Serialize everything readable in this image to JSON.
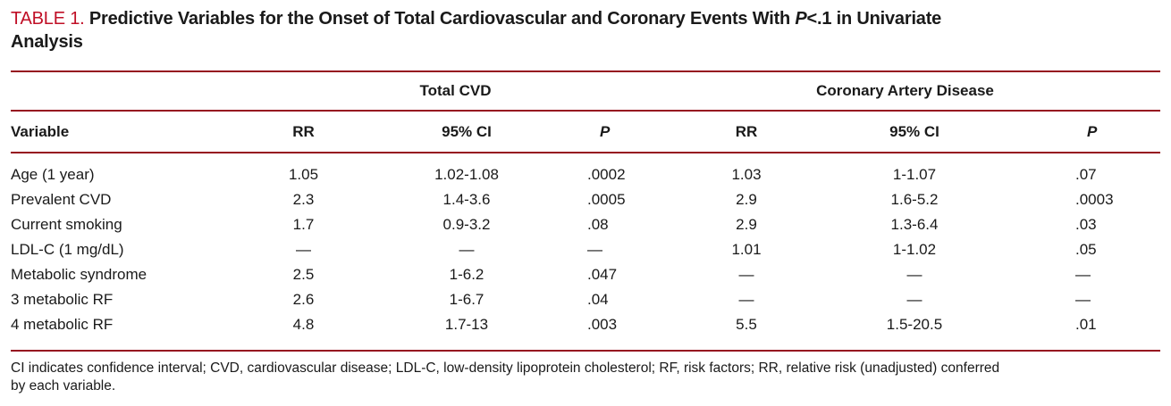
{
  "title": {
    "label": "TABLE 1.",
    "line1_pre": " Predictive Variables for the Onset of Total Cardiovascular and Coronary Events With ",
    "p_italic": "P",
    "line1_post": "<.1 in Univariate",
    "line2": "Analysis"
  },
  "table": {
    "spanners": [
      "Total CVD",
      "Coronary Artery Disease"
    ],
    "columns": [
      "Variable",
      "RR",
      "95% CI",
      "P",
      "RR",
      "95% CI",
      "P"
    ],
    "rows": [
      [
        "Age (1 year)",
        "1.05",
        "1.02-1.08",
        ".0002",
        "1.03",
        "1-1.07",
        ".07"
      ],
      [
        "Prevalent CVD",
        "2.3",
        "1.4-3.6",
        ".0005",
        "2.9",
        "1.6-5.2",
        ".0003"
      ],
      [
        "Current smoking",
        "1.7",
        "0.9-3.2",
        ".08",
        "2.9",
        "1.3-6.4",
        ".03"
      ],
      [
        "LDL-C (1 mg/dL)",
        "—",
        "—",
        "—",
        "1.01",
        "1-1.02",
        ".05"
      ],
      [
        "Metabolic syndrome",
        "2.5",
        "1-6.2",
        ".047",
        "—",
        "—",
        "—"
      ],
      [
        "3 metabolic RF",
        "2.6",
        "1-6.7",
        ".04",
        "—",
        "—",
        "—"
      ],
      [
        "4 metabolic RF",
        "4.8",
        "1.7-13",
        ".003",
        "5.5",
        "1.5-20.5",
        ".01"
      ]
    ]
  },
  "footnote": {
    "line1": "CI indicates confidence interval; CVD, cardiovascular disease; LDL-C, low-density lipoprotein cholesterol; RF, risk factors; RR, relative risk (unadjusted) conferred",
    "line2": "by each variable."
  },
  "colors": {
    "title_accent_red": "#c00f26",
    "rule_red": "#96101f",
    "text": "#1a1a1a"
  }
}
